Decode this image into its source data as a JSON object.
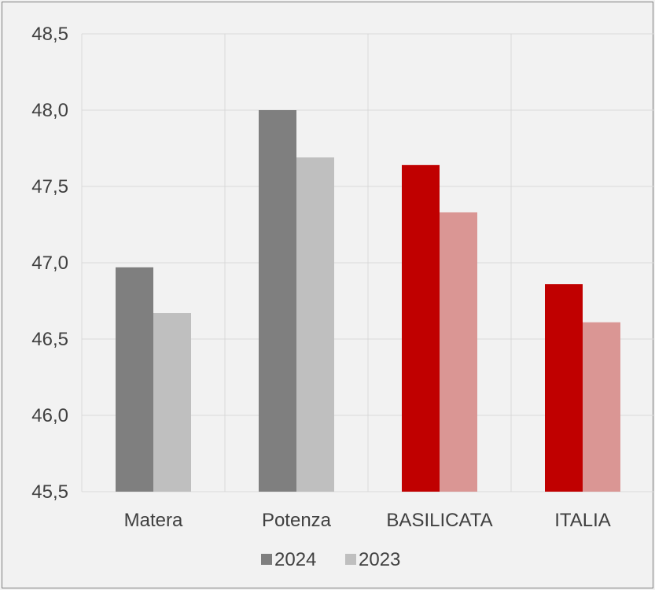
{
  "chart_data": {
    "type": "bar",
    "categories": [
      "Matera",
      "Potenza",
      "BASILICATA",
      "ITALIA"
    ],
    "series": [
      {
        "name": "2024",
        "values": [
          46.97,
          48.0,
          47.64,
          46.86
        ]
      },
      {
        "name": "2023",
        "values": [
          46.67,
          47.69,
          47.33,
          46.61
        ]
      }
    ],
    "bar_colors": {
      "2024": [
        "#7f7f7f",
        "#7f7f7f",
        "#c00000",
        "#c00000"
      ],
      "2023": [
        "#bfbfbf",
        "#bfbfbf",
        "#da9694",
        "#da9694"
      ]
    },
    "legend_colors": {
      "2024": "#7f7f7f",
      "2023": "#bfbfbf"
    },
    "ylim": [
      45.5,
      48.5
    ],
    "yticks": [
      "45,5",
      "46,0",
      "46,5",
      "47,0",
      "47,5",
      "48,0",
      "48,5"
    ],
    "ytick_values": [
      45.5,
      46.0,
      46.5,
      47.0,
      47.5,
      48.0,
      48.5
    ],
    "grid": true,
    "legend_position": "bottom",
    "title": "",
    "xlabel": "",
    "ylabel": ""
  }
}
